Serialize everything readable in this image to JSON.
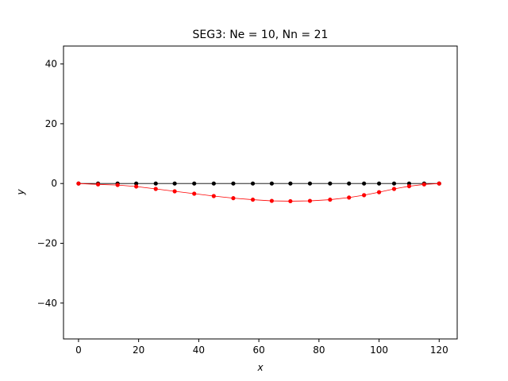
{
  "chart_data": {
    "type": "line",
    "title": "SEG3: Ne = 10, Nn = 21",
    "xlabel": "x",
    "ylabel": "y",
    "xlim": [
      -5,
      126
    ],
    "ylim": [
      -52,
      46
    ],
    "xticks": [
      0,
      20,
      40,
      60,
      80,
      100,
      120
    ],
    "yticks": [
      -40,
      -20,
      0,
      20,
      40
    ],
    "xtick_labels": [
      "0",
      "20",
      "40",
      "60",
      "80",
      "100",
      "120"
    ],
    "ytick_labels": [
      "−40",
      "−20",
      "0",
      "20",
      "40"
    ],
    "grid": false,
    "series": [
      {
        "color": "#000000",
        "x": [
          0,
          6.5,
          13,
          19.2,
          25.7,
          32,
          38.5,
          45,
          51.5,
          58,
          64.3,
          70.5,
          77,
          83.7,
          90,
          95,
          100,
          105,
          110,
          115,
          120
        ],
        "y": [
          0,
          0,
          0,
          0,
          0,
          0,
          0,
          0,
          0,
          0,
          0,
          0,
          0,
          0,
          0,
          0,
          0,
          0,
          0,
          0,
          0
        ]
      },
      {
        "color": "#ff0000",
        "x": [
          0,
          6.5,
          13,
          19.2,
          25.7,
          32,
          38.5,
          45,
          51.5,
          58,
          64.3,
          70.5,
          77,
          83.7,
          90,
          95,
          100,
          105,
          110,
          115,
          120
        ],
        "y": [
          0,
          -0.3,
          -0.5,
          -1.0,
          -1.8,
          -2.6,
          -3.4,
          -4.2,
          -4.9,
          -5.4,
          -5.8,
          -5.9,
          -5.8,
          -5.4,
          -4.7,
          -3.9,
          -2.9,
          -1.8,
          -0.9,
          -0.3,
          0
        ]
      }
    ]
  }
}
